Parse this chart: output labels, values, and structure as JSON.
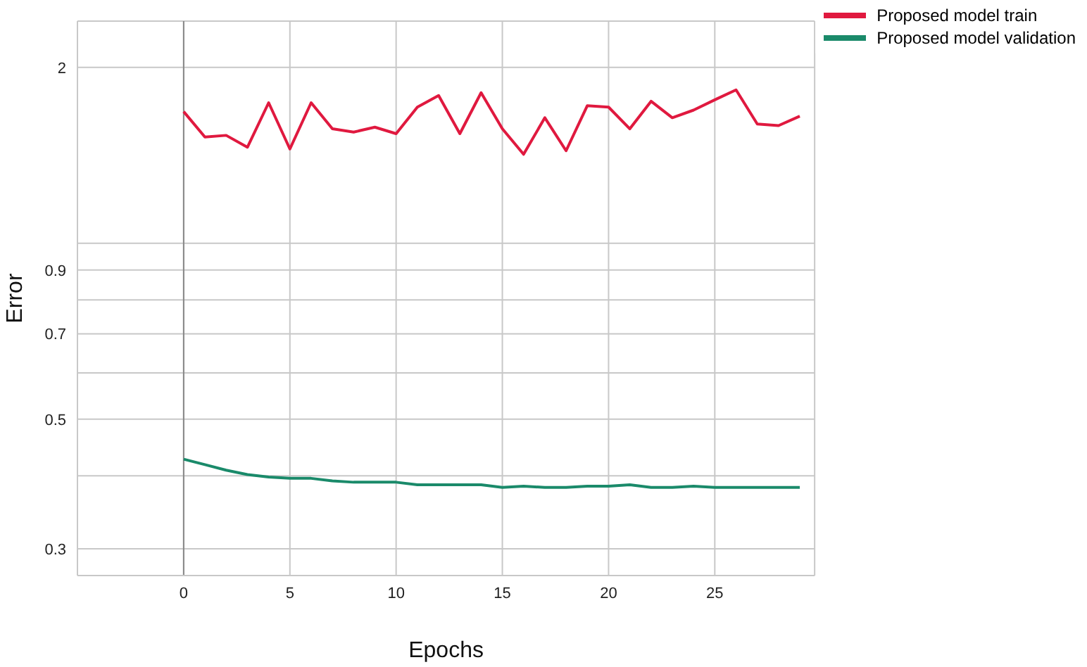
{
  "chart_data": {
    "type": "line",
    "xlabel": "Epochs",
    "ylabel": "Error",
    "x": [
      0,
      1,
      2,
      3,
      4,
      5,
      6,
      7,
      8,
      9,
      10,
      11,
      12,
      13,
      14,
      15,
      16,
      17,
      18,
      19,
      20,
      21,
      22,
      23,
      24,
      25,
      26,
      27,
      28,
      29
    ],
    "series": [
      {
        "name": "Proposed model train",
        "color": "#e0193f",
        "values": [
          1.68,
          1.52,
          1.53,
          1.46,
          1.74,
          1.45,
          1.74,
          1.57,
          1.55,
          1.58,
          1.54,
          1.71,
          1.79,
          1.54,
          1.81,
          1.57,
          1.42,
          1.64,
          1.44,
          1.72,
          1.71,
          1.57,
          1.75,
          1.64,
          1.69,
          1.76,
          1.83,
          1.6,
          1.59,
          1.65
        ]
      },
      {
        "name": "Proposed model validation",
        "color": "#1a8a6a",
        "values": [
          0.427,
          0.418,
          0.409,
          0.402,
          0.398,
          0.396,
          0.396,
          0.392,
          0.39,
          0.39,
          0.39,
          0.386,
          0.386,
          0.386,
          0.386,
          0.382,
          0.384,
          0.382,
          0.382,
          0.384,
          0.384,
          0.386,
          0.382,
          0.382,
          0.384,
          0.382,
          0.382,
          0.382,
          0.382,
          0.382
        ]
      }
    ],
    "log": "y",
    "xlim": [
      -5,
      29.7
    ],
    "xticks": [
      0,
      5,
      10,
      15,
      20,
      25
    ],
    "ylim": [
      0.27,
      2.4
    ],
    "yticks": [
      0.3,
      {
        "value": 0.4,
        "label": null
      },
      0.5,
      {
        "value": 0.6,
        "label": null
      },
      0.7,
      {
        "value": 0.8,
        "label": null
      },
      0.9,
      {
        "value": 1,
        "label": null
      },
      2
    ],
    "ref_lines": [
      {
        "axis": "x",
        "value": 0,
        "color": "#888888"
      }
    ],
    "grid": true,
    "legend": "top right",
    "marker": "none",
    "line_style": "solid"
  }
}
